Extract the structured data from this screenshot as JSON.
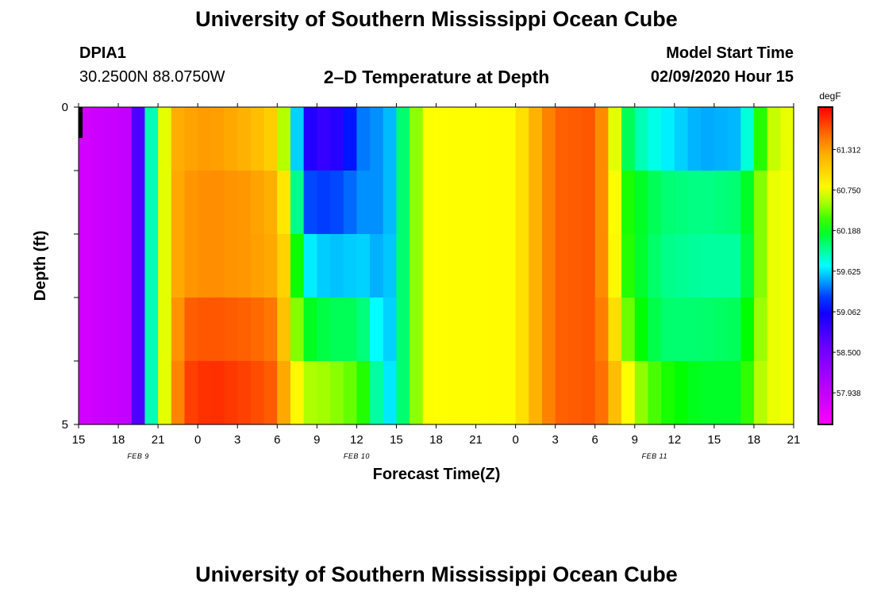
{
  "title": "University of Southern Mississippi Ocean Cube",
  "footer_title": "University of Southern Mississippi Ocean Cube",
  "station": {
    "id": "DPIA1",
    "coords": "30.2500N 88.0750W"
  },
  "model": {
    "label": "Model Start Time",
    "datetime": "02/09/2020 Hour 15"
  },
  "chart_data": {
    "type": "heatmap",
    "title": "2–D Temperature at Depth",
    "xlabel": "Forecast Time(Z)",
    "ylabel": "Depth (ft)",
    "units": "degF",
    "ylim": [
      0,
      5
    ],
    "y_tick_labels": [
      "0",
      "5"
    ],
    "x_tick_labels": [
      "15",
      "18",
      "21",
      "0",
      "3",
      "6",
      "9",
      "12",
      "15",
      "18",
      "21",
      "0",
      "3",
      "6",
      "9",
      "12",
      "15",
      "18",
      "21"
    ],
    "date_labels": [
      {
        "text": "FEB 9",
        "hour_index": 4.5
      },
      {
        "text": "FEB 10",
        "hour_index": 21
      },
      {
        "text": "FEB 11",
        "hour_index": 43.5
      }
    ],
    "time_start_hour": 15,
    "time_steps": 54,
    "depth_layers": 5,
    "colorbar": {
      "min": 57.5,
      "max": 61.9,
      "tick_values": [
        61.312,
        60.75,
        60.188,
        59.625,
        59.062,
        58.5,
        57.938
      ],
      "tick_labels": [
        "61.312",
        "60.750",
        "60.188",
        "59.625",
        "59.062",
        "58.500",
        "57.938"
      ]
    },
    "profile_keyframes": [
      {
        "t": 0,
        "v": [
          57.82,
          57.82,
          57.82,
          57.82,
          57.82,
          57.82
        ]
      },
      {
        "t": 4,
        "v": [
          57.95,
          57.95,
          57.95,
          57.95,
          57.95,
          57.95
        ]
      },
      {
        "t": 5,
        "v": [
          59.5,
          59.5,
          59.5,
          59.5,
          59.5,
          59.5
        ]
      },
      {
        "t": 6,
        "v": [
          60.2,
          60.2,
          60.2,
          60.2,
          60.2,
          60.2
        ]
      },
      {
        "t": 7,
        "v": [
          61.2,
          61.2,
          61.2,
          61.2,
          61.2,
          61.2
        ]
      },
      {
        "t": 8,
        "v": [
          61.3,
          61.35,
          61.35,
          61.55,
          61.65,
          61.7
        ]
      },
      {
        "t": 10,
        "v": [
          61.35,
          61.4,
          61.4,
          61.6,
          61.75,
          61.85
        ]
      },
      {
        "t": 13,
        "v": [
          61.2,
          61.35,
          61.35,
          61.55,
          61.65,
          61.75
        ]
      },
      {
        "t": 15,
        "v": [
          61.0,
          61.2,
          61.25,
          61.45,
          61.55,
          61.6
        ]
      },
      {
        "t": 16,
        "v": [
          60.2,
          60.6,
          60.8,
          60.8,
          61.0,
          61.2
        ]
      },
      {
        "t": 17,
        "v": [
          59.0,
          59.3,
          59.7,
          60.2,
          60.6,
          61.0
        ]
      },
      {
        "t": 19,
        "v": [
          58.8,
          59.25,
          59.55,
          60.05,
          60.55,
          60.7
        ]
      },
      {
        "t": 21,
        "v": [
          59.3,
          59.4,
          59.6,
          60.05,
          60.4,
          60.6
        ]
      },
      {
        "t": 22,
        "v": [
          59.5,
          59.5,
          59.6,
          59.9,
          60.2,
          60.3
        ]
      },
      {
        "t": 23,
        "v": [
          59.4,
          59.4,
          59.45,
          59.5,
          59.6,
          59.8
        ]
      },
      {
        "t": 24,
        "v": [
          59.7,
          59.7,
          59.7,
          59.7,
          59.7,
          59.7
        ]
      },
      {
        "t": 25,
        "v": [
          60.3,
          60.3,
          60.3,
          60.3,
          60.3,
          60.3
        ]
      },
      {
        "t": 26,
        "v": [
          60.75,
          60.75,
          60.75,
          60.75,
          60.75,
          60.75
        ]
      },
      {
        "t": 33,
        "v": [
          60.78,
          60.78,
          60.78,
          60.78,
          60.78,
          60.78
        ]
      },
      {
        "t": 34,
        "v": [
          61.1,
          61.1,
          61.1,
          61.1,
          61.1,
          61.1
        ]
      },
      {
        "t": 36,
        "v": [
          61.55,
          61.55,
          61.55,
          61.55,
          61.55,
          61.55
        ]
      },
      {
        "t": 39,
        "v": [
          61.6,
          61.6,
          61.6,
          61.6,
          61.6,
          61.6
        ]
      },
      {
        "t": 40,
        "v": [
          61.2,
          61.2,
          61.2,
          61.3,
          61.4,
          61.4
        ]
      },
      {
        "t": 41,
        "v": [
          60.2,
          60.35,
          60.4,
          60.6,
          60.9,
          61.1
        ]
      },
      {
        "t": 42,
        "v": [
          59.9,
          60.2,
          60.2,
          60.3,
          60.6,
          60.9
        ]
      },
      {
        "t": 44,
        "v": [
          59.7,
          60.0,
          59.95,
          60.0,
          60.3,
          60.55
        ]
      },
      {
        "t": 47,
        "v": [
          59.5,
          59.95,
          59.9,
          60.0,
          60.15,
          60.3
        ]
      },
      {
        "t": 50,
        "v": [
          59.55,
          60.0,
          59.9,
          60.05,
          60.15,
          60.3
        ]
      },
      {
        "t": 51,
        "v": [
          60.0,
          60.3,
          60.3,
          60.4,
          60.5,
          60.55
        ]
      },
      {
        "t": 52,
        "v": [
          60.6,
          60.7,
          60.7,
          60.7,
          60.7,
          60.7
        ]
      },
      {
        "t": 54,
        "v": [
          60.75,
          60.75,
          60.75,
          60.75,
          60.75,
          60.75
        ]
      }
    ]
  }
}
